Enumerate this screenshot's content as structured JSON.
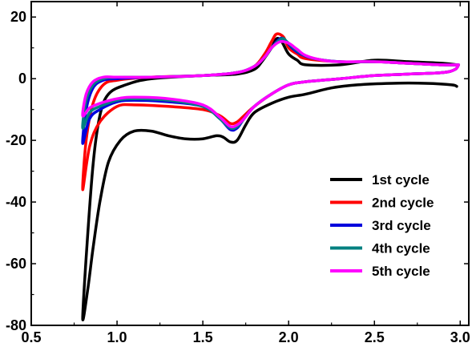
{
  "chart_data": {
    "type": "line",
    "title": "",
    "xlabel": "",
    "ylabel": "",
    "xlim": [
      0.5,
      3.05
    ],
    "ylim": [
      -80,
      25
    ],
    "grid": false,
    "legend_position": "bottom-right",
    "x_ticks": [
      0.5,
      1.0,
      1.5,
      2.0,
      2.5,
      3.0
    ],
    "x_tick_labels": [
      "0.5",
      "1.0",
      "1.5",
      "2.0",
      "2.5",
      "3.0"
    ],
    "y_ticks": [
      20,
      0,
      -20,
      -40,
      -60,
      -80
    ],
    "y_tick_labels": [
      "20",
      "0",
      "-20",
      "-40",
      "-60",
      "-80"
    ],
    "series": [
      {
        "name": "1st cycle",
        "color": "#000000",
        "points": [
          [
            2.98,
            -2.5
          ],
          [
            2.95,
            -2
          ],
          [
            2.8,
            -1.5
          ],
          [
            2.6,
            -1.5
          ],
          [
            2.4,
            -2
          ],
          [
            2.25,
            -3
          ],
          [
            2.1,
            -5
          ],
          [
            2.0,
            -6
          ],
          [
            1.9,
            -8
          ],
          [
            1.8,
            -11
          ],
          [
            1.75,
            -15
          ],
          [
            1.7,
            -20
          ],
          [
            1.66,
            -20.5
          ],
          [
            1.62,
            -19
          ],
          [
            1.58,
            -18.5
          ],
          [
            1.5,
            -19.5
          ],
          [
            1.4,
            -19.5
          ],
          [
            1.3,
            -18.5
          ],
          [
            1.2,
            -17
          ],
          [
            1.1,
            -17
          ],
          [
            1.02,
            -20
          ],
          [
            0.95,
            -27
          ],
          [
            0.9,
            -40
          ],
          [
            0.86,
            -55
          ],
          [
            0.83,
            -68
          ],
          [
            0.8,
            -78
          ],
          [
            0.82,
            -58
          ],
          [
            0.86,
            -28
          ],
          [
            0.9,
            -12
          ],
          [
            0.95,
            -5
          ],
          [
            1.05,
            -2
          ],
          [
            1.2,
            0
          ],
          [
            1.5,
            1
          ],
          [
            1.7,
            1.5
          ],
          [
            1.8,
            3
          ],
          [
            1.85,
            6
          ],
          [
            1.9,
            10
          ],
          [
            1.93,
            13
          ],
          [
            1.96,
            12
          ],
          [
            2.0,
            8
          ],
          [
            2.05,
            6
          ],
          [
            2.1,
            4.5
          ],
          [
            2.3,
            4.5
          ],
          [
            2.5,
            6
          ],
          [
            2.7,
            5.5
          ],
          [
            2.9,
            5
          ],
          [
            2.98,
            4.5
          ]
        ]
      },
      {
        "name": "2nd cycle",
        "color": "#ff0000",
        "points": [
          [
            2.99,
            4.5
          ],
          [
            2.97,
            3
          ],
          [
            2.9,
            2
          ],
          [
            2.7,
            1.5
          ],
          [
            2.5,
            1
          ],
          [
            2.3,
            0
          ],
          [
            2.1,
            -1
          ],
          [
            2.0,
            -2
          ],
          [
            1.9,
            -5
          ],
          [
            1.8,
            -9
          ],
          [
            1.74,
            -12
          ],
          [
            1.7,
            -14
          ],
          [
            1.66,
            -14.5
          ],
          [
            1.6,
            -12
          ],
          [
            1.5,
            -10
          ],
          [
            1.3,
            -9
          ],
          [
            1.1,
            -8.5
          ],
          [
            1.0,
            -9
          ],
          [
            0.9,
            -14
          ],
          [
            0.84,
            -22
          ],
          [
            0.8,
            -36
          ],
          [
            0.82,
            -20
          ],
          [
            0.86,
            -8
          ],
          [
            0.92,
            -2
          ],
          [
            1.0,
            -0.5
          ],
          [
            1.2,
            0.5
          ],
          [
            1.5,
            1
          ],
          [
            1.7,
            2
          ],
          [
            1.8,
            4
          ],
          [
            1.86,
            8
          ],
          [
            1.9,
            12
          ],
          [
            1.93,
            14.5
          ],
          [
            1.97,
            13.5
          ],
          [
            2.0,
            10
          ],
          [
            2.05,
            8
          ],
          [
            2.1,
            6.5
          ],
          [
            2.3,
            5.5
          ],
          [
            2.5,
            5.5
          ],
          [
            2.7,
            5
          ],
          [
            2.9,
            4.5
          ],
          [
            2.99,
            4.5
          ]
        ]
      },
      {
        "name": "3rd cycle",
        "color": "#0000dd",
        "points": [
          [
            2.99,
            4.5
          ],
          [
            2.97,
            3
          ],
          [
            2.9,
            2
          ],
          [
            2.7,
            1.5
          ],
          [
            2.5,
            1
          ],
          [
            2.3,
            0
          ],
          [
            2.1,
            -1
          ],
          [
            2.0,
            -2
          ],
          [
            1.9,
            -5
          ],
          [
            1.8,
            -9
          ],
          [
            1.74,
            -13
          ],
          [
            1.7,
            -16
          ],
          [
            1.66,
            -16.5
          ],
          [
            1.6,
            -13
          ],
          [
            1.5,
            -9
          ],
          [
            1.3,
            -7.5
          ],
          [
            1.1,
            -7
          ],
          [
            1.0,
            -7.5
          ],
          [
            0.9,
            -10
          ],
          [
            0.84,
            -13
          ],
          [
            0.8,
            -21
          ],
          [
            0.82,
            -10
          ],
          [
            0.86,
            -3
          ],
          [
            0.92,
            -0.5
          ],
          [
            1.0,
            0
          ],
          [
            1.2,
            0.5
          ],
          [
            1.5,
            1
          ],
          [
            1.7,
            2
          ],
          [
            1.8,
            4
          ],
          [
            1.86,
            7
          ],
          [
            1.9,
            10
          ],
          [
            1.95,
            13
          ],
          [
            1.98,
            12.5
          ],
          [
            2.02,
            10
          ],
          [
            2.07,
            8
          ],
          [
            2.15,
            6.5
          ],
          [
            2.3,
            5.5
          ],
          [
            2.5,
            5.5
          ],
          [
            2.7,
            5
          ],
          [
            2.9,
            4.5
          ],
          [
            2.99,
            4.5
          ]
        ]
      },
      {
        "name": "4th cycle",
        "color": "#008080",
        "points": [
          [
            2.99,
            4.5
          ],
          [
            2.97,
            3
          ],
          [
            2.9,
            2
          ],
          [
            2.7,
            1.5
          ],
          [
            2.5,
            1
          ],
          [
            2.3,
            0
          ],
          [
            2.1,
            -1
          ],
          [
            2.0,
            -2
          ],
          [
            1.9,
            -5
          ],
          [
            1.8,
            -9
          ],
          [
            1.74,
            -13
          ],
          [
            1.7,
            -15.5
          ],
          [
            1.66,
            -16
          ],
          [
            1.6,
            -13
          ],
          [
            1.5,
            -9
          ],
          [
            1.3,
            -7
          ],
          [
            1.1,
            -6.5
          ],
          [
            1.0,
            -7
          ],
          [
            0.9,
            -9
          ],
          [
            0.84,
            -11
          ],
          [
            0.8,
            -16
          ],
          [
            0.82,
            -7
          ],
          [
            0.86,
            -2
          ],
          [
            0.92,
            0
          ],
          [
            1.0,
            0.5
          ],
          [
            1.2,
            0.5
          ],
          [
            1.5,
            1
          ],
          [
            1.7,
            2
          ],
          [
            1.8,
            4
          ],
          [
            1.86,
            7
          ],
          [
            1.9,
            10
          ],
          [
            1.96,
            13
          ],
          [
            1.99,
            12
          ],
          [
            2.03,
            10
          ],
          [
            2.08,
            8
          ],
          [
            2.15,
            6.5
          ],
          [
            2.3,
            5.5
          ],
          [
            2.5,
            5.5
          ],
          [
            2.7,
            5
          ],
          [
            2.9,
            4.5
          ],
          [
            2.99,
            4.5
          ]
        ]
      },
      {
        "name": "5th cycle",
        "color": "#ff00ff",
        "points": [
          [
            2.99,
            4.5
          ],
          [
            2.97,
            3
          ],
          [
            2.9,
            2
          ],
          [
            2.7,
            1.5
          ],
          [
            2.5,
            1
          ],
          [
            2.3,
            0
          ],
          [
            2.1,
            -1
          ],
          [
            2.0,
            -2
          ],
          [
            1.9,
            -5
          ],
          [
            1.8,
            -9
          ],
          [
            1.74,
            -13
          ],
          [
            1.7,
            -15
          ],
          [
            1.66,
            -15.5
          ],
          [
            1.6,
            -12.5
          ],
          [
            1.5,
            -8.5
          ],
          [
            1.3,
            -6.5
          ],
          [
            1.1,
            -6
          ],
          [
            1.0,
            -6.5
          ],
          [
            0.9,
            -8
          ],
          [
            0.84,
            -9.5
          ],
          [
            0.8,
            -12
          ],
          [
            0.82,
            -5
          ],
          [
            0.86,
            -1
          ],
          [
            0.92,
            0.5
          ],
          [
            1.0,
            0.5
          ],
          [
            1.2,
            0.5
          ],
          [
            1.5,
            1
          ],
          [
            1.7,
            2
          ],
          [
            1.8,
            4
          ],
          [
            1.86,
            7
          ],
          [
            1.9,
            10
          ],
          [
            1.95,
            12
          ],
          [
            2.0,
            11.5
          ],
          [
            2.05,
            9.5
          ],
          [
            2.1,
            7.5
          ],
          [
            2.2,
            6
          ],
          [
            2.3,
            5.5
          ],
          [
            2.5,
            5.5
          ],
          [
            2.7,
            5
          ],
          [
            2.9,
            4.5
          ],
          [
            2.99,
            4.5
          ]
        ]
      }
    ]
  }
}
